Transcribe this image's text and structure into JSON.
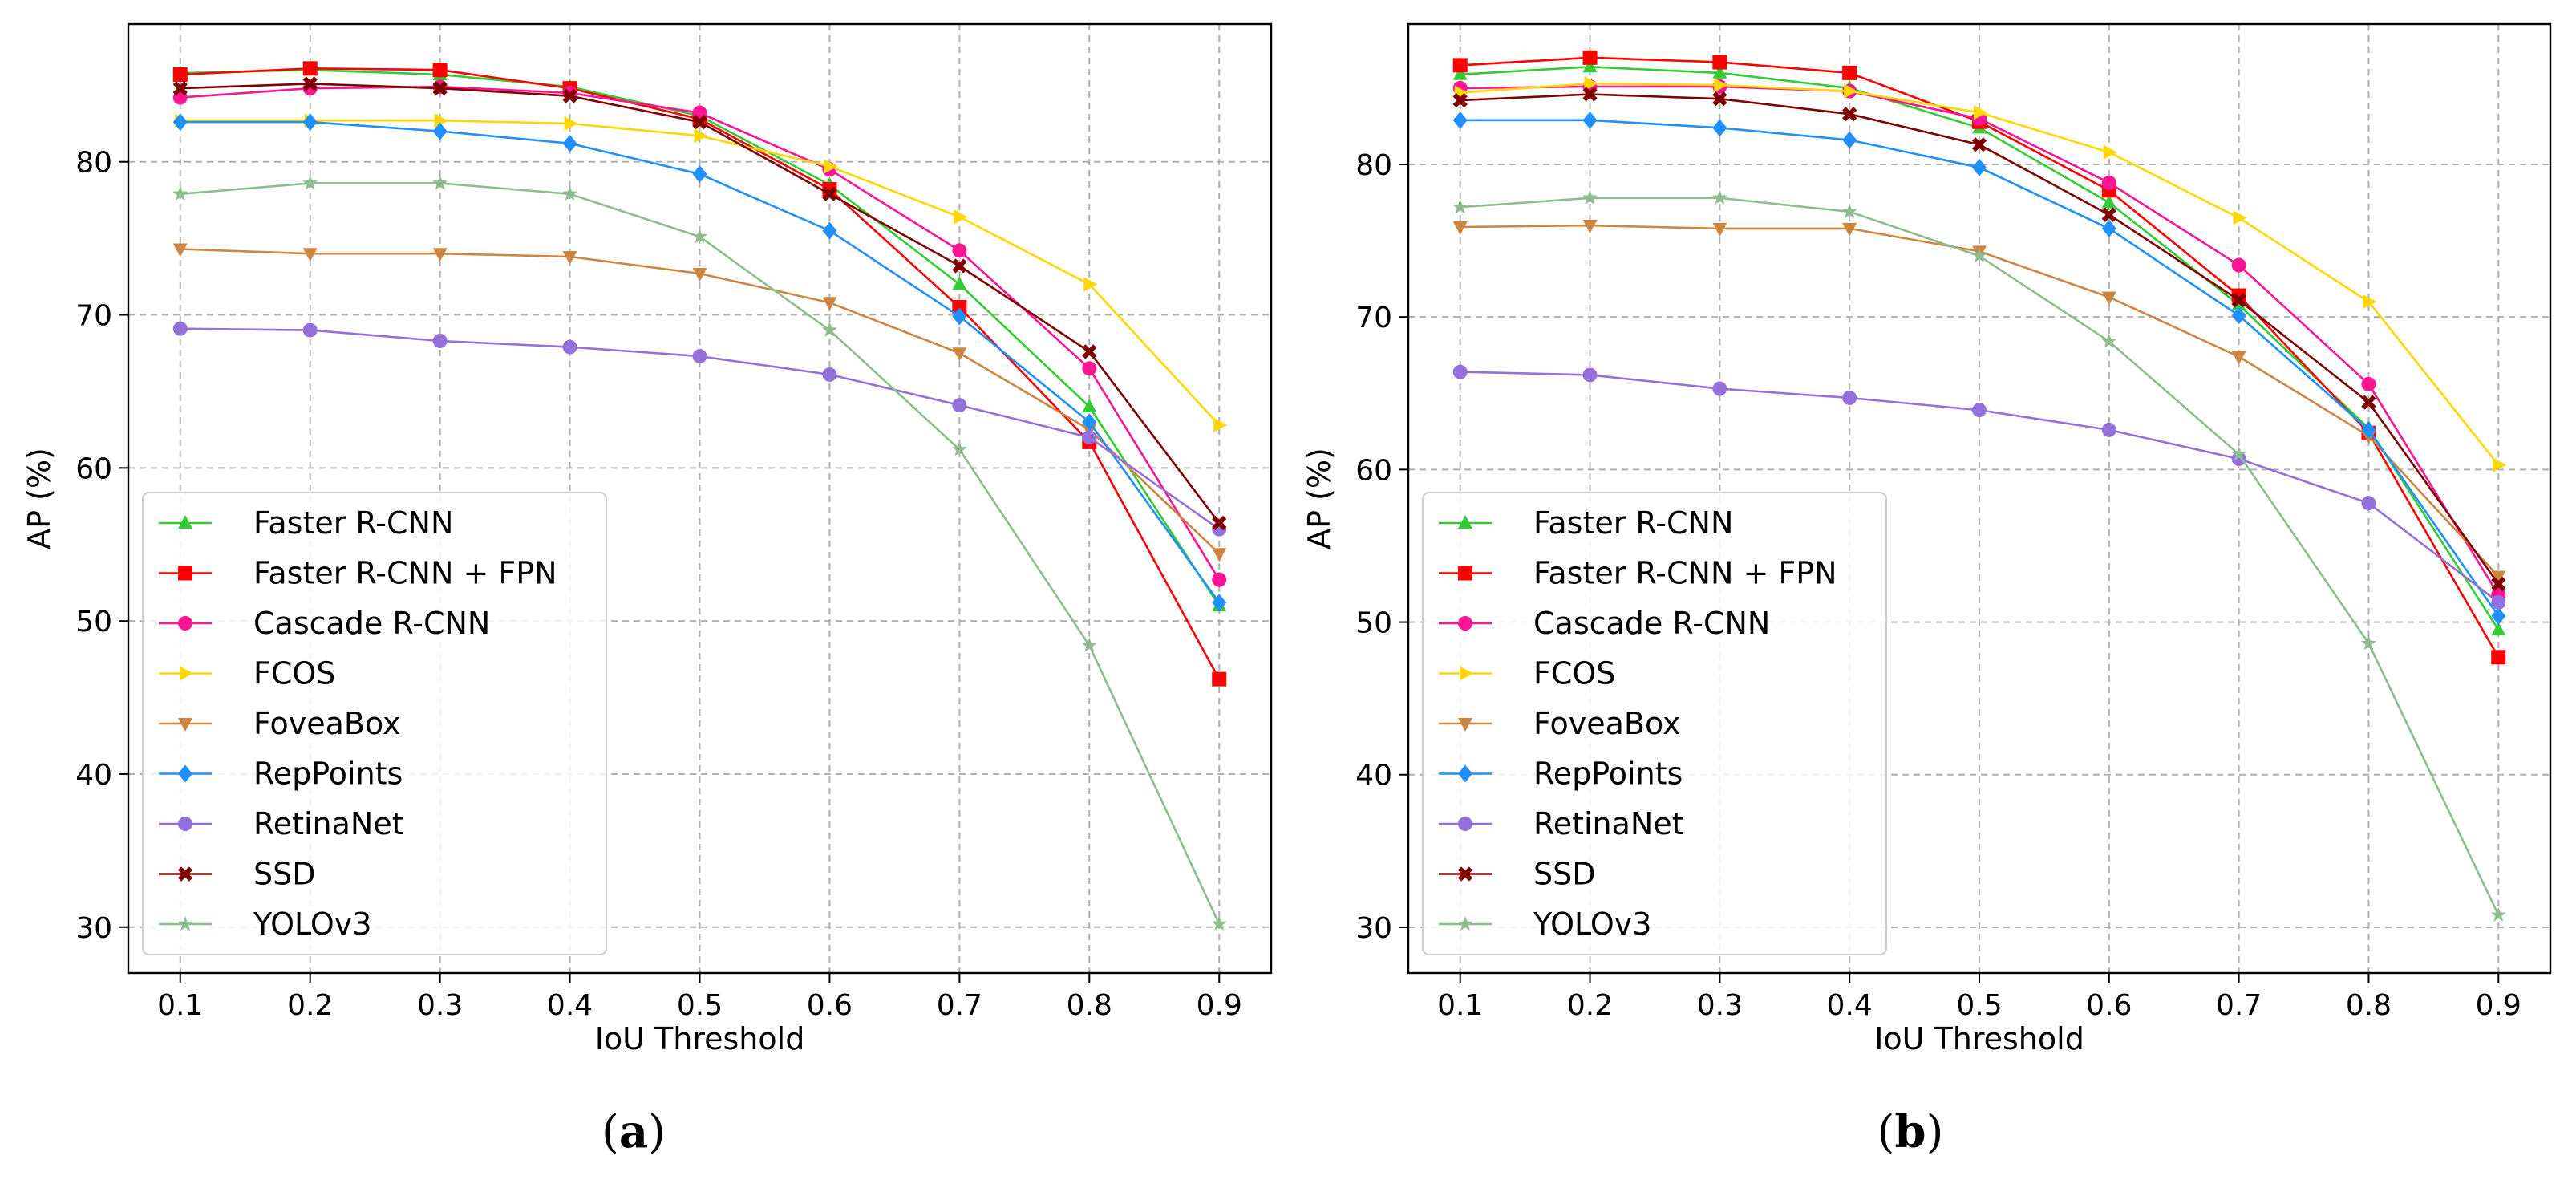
{
  "chart_data": [
    {
      "type": "line",
      "caption_open": "(",
      "caption_letter": "a",
      "caption_close": ")",
      "xlabel": "IoU Threshold",
      "ylabel": "AP (%)",
      "x": [
        0.1,
        0.2,
        0.3,
        0.4,
        0.5,
        0.6,
        0.7,
        0.8,
        0.9
      ],
      "xticks": [
        "0.1",
        "0.2",
        "0.3",
        "0.4",
        "0.5",
        "0.6",
        "0.7",
        "0.8",
        "0.9"
      ],
      "xlim": [
        0.06,
        0.94
      ],
      "ylim": [
        27,
        89
      ],
      "yticks": [
        30,
        40,
        50,
        60,
        70,
        80
      ],
      "ytick_labels": [
        "30",
        "40",
        "50",
        "60",
        "70",
        "80"
      ],
      "grid": true,
      "legend_position": "lower-left",
      "series": [
        {
          "name": "Faster R-CNN",
          "color": "#32cd32",
          "marker": "triangle",
          "values": [
            85.8,
            86.0,
            85.7,
            84.9,
            83.0,
            78.5,
            72.0,
            64.0,
            51.0
          ]
        },
        {
          "name": "Faster R-CNN + FPN",
          "color": "#ff0000",
          "marker": "square",
          "values": [
            85.7,
            86.1,
            86.0,
            84.8,
            82.8,
            78.2,
            70.5,
            61.7,
            46.2
          ]
        },
        {
          "name": "Cascade R-CNN",
          "color": "#ff1493",
          "marker": "circle",
          "values": [
            84.2,
            84.8,
            84.9,
            84.5,
            83.2,
            79.5,
            74.2,
            66.5,
            52.7
          ]
        },
        {
          "name": "FCOS",
          "color": "#ffd700",
          "marker": "triangle-right",
          "values": [
            82.7,
            82.7,
            82.7,
            82.5,
            81.7,
            79.7,
            76.4,
            72.0,
            62.8
          ]
        },
        {
          "name": "FoveaBox",
          "color": "#cd853f",
          "marker": "triangle-down",
          "values": [
            74.3,
            74.0,
            74.0,
            73.8,
            72.7,
            70.8,
            67.5,
            62.5,
            54.4
          ]
        },
        {
          "name": "RepPoints",
          "color": "#1e90ff",
          "marker": "diamond",
          "values": [
            82.6,
            82.6,
            82.0,
            81.2,
            79.2,
            75.5,
            69.9,
            63.0,
            51.2
          ]
        },
        {
          "name": "RetinaNet",
          "color": "#9370db",
          "marker": "circle",
          "values": [
            69.1,
            69.0,
            68.3,
            67.9,
            67.3,
            66.1,
            64.1,
            62.0,
            56.0
          ]
        },
        {
          "name": "SSD",
          "color": "#800000",
          "marker": "x",
          "values": [
            84.8,
            85.1,
            84.8,
            84.3,
            82.6,
            77.9,
            73.2,
            67.6,
            56.4
          ]
        },
        {
          "name": "YOLOv3",
          "color": "#8fbc8f",
          "marker": "star",
          "values": [
            77.9,
            78.6,
            78.6,
            77.9,
            75.1,
            69.0,
            61.2,
            48.4,
            30.2
          ]
        }
      ]
    },
    {
      "type": "line",
      "caption_open": "(",
      "caption_letter": "b",
      "caption_close": ")",
      "xlabel": "IoU Threshold",
      "ylabel": "AP (%)",
      "x": [
        0.1,
        0.2,
        0.3,
        0.4,
        0.5,
        0.6,
        0.7,
        0.8,
        0.9
      ],
      "xticks": [
        "0.1",
        "0.2",
        "0.3",
        "0.4",
        "0.5",
        "0.6",
        "0.7",
        "0.8",
        "0.9"
      ],
      "xlim": [
        0.06,
        0.94
      ],
      "ylim": [
        27,
        89.2
      ],
      "yticks": [
        30,
        40,
        50,
        60,
        70,
        80
      ],
      "ytick_labels": [
        "30",
        "40",
        "50",
        "60",
        "70",
        "80"
      ],
      "grid": true,
      "legend_position": "lower-left",
      "series": [
        {
          "name": "Faster R-CNN",
          "color": "#32cd32",
          "marker": "triangle",
          "values": [
            85.9,
            86.4,
            86.0,
            85.0,
            82.4,
            77.5,
            70.8,
            62.7,
            49.5
          ]
        },
        {
          "name": "Faster R-CNN + FPN",
          "color": "#ff0000",
          "marker": "square",
          "values": [
            86.5,
            87.0,
            86.7,
            86.0,
            82.8,
            78.3,
            71.4,
            62.4,
            47.7
          ]
        },
        {
          "name": "Cascade R-CNN",
          "color": "#ff1493",
          "marker": "circle",
          "values": [
            85.0,
            85.1,
            85.1,
            84.8,
            83.0,
            78.8,
            73.4,
            65.6,
            51.8
          ]
        },
        {
          "name": "FCOS",
          "color": "#ffd700",
          "marker": "triangle-right",
          "values": [
            84.7,
            85.3,
            85.2,
            84.8,
            83.4,
            80.8,
            76.5,
            71.0,
            60.3
          ]
        },
        {
          "name": "FoveaBox",
          "color": "#cd853f",
          "marker": "triangle-down",
          "values": [
            75.9,
            76.0,
            75.8,
            75.8,
            74.3,
            71.3,
            67.4,
            62.2,
            53.0
          ]
        },
        {
          "name": "RepPoints",
          "color": "#1e90ff",
          "marker": "diamond",
          "values": [
            82.9,
            82.9,
            82.4,
            81.6,
            79.8,
            75.8,
            70.1,
            62.6,
            50.4
          ]
        },
        {
          "name": "RetinaNet",
          "color": "#9370db",
          "marker": "circle",
          "values": [
            66.4,
            66.2,
            65.3,
            64.7,
            63.9,
            62.6,
            60.7,
            57.8,
            51.3
          ]
        },
        {
          "name": "SSD",
          "color": "#800000",
          "marker": "x",
          "values": [
            84.2,
            84.6,
            84.3,
            83.3,
            81.3,
            76.7,
            71.1,
            64.4,
            52.5
          ]
        },
        {
          "name": "YOLOv3",
          "color": "#8fbc8f",
          "marker": "star",
          "values": [
            77.2,
            77.8,
            77.8,
            76.9,
            74.0,
            68.4,
            61.0,
            48.6,
            30.8
          ]
        }
      ]
    }
  ]
}
